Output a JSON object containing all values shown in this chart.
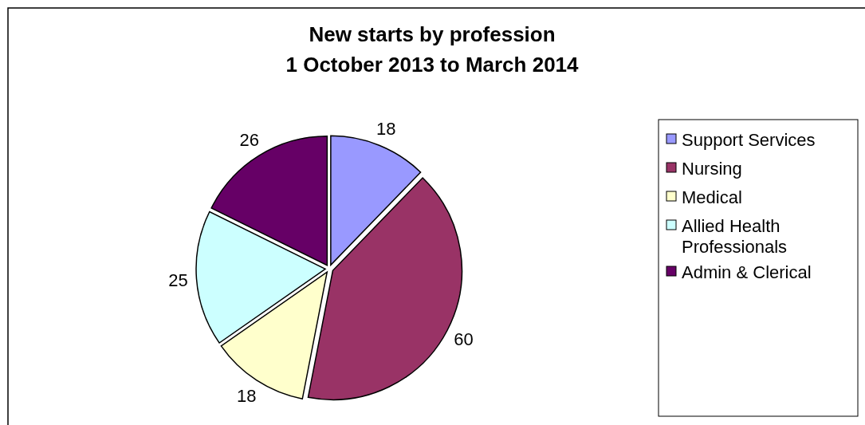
{
  "chart_data": {
    "type": "pie",
    "title": "New starts by profession",
    "subtitle": "1 October 2013 to March 2014",
    "categories": [
      "Support Services",
      "Nursing",
      "Medical",
      "Allied Health Professionals",
      "Admin & Clerical"
    ],
    "values": [
      18,
      60,
      18,
      25,
      26
    ],
    "colors": [
      "#9999ff",
      "#993366",
      "#ffffcc",
      "#ccffff",
      "#660066"
    ],
    "data_labels": true,
    "legend": "right"
  }
}
